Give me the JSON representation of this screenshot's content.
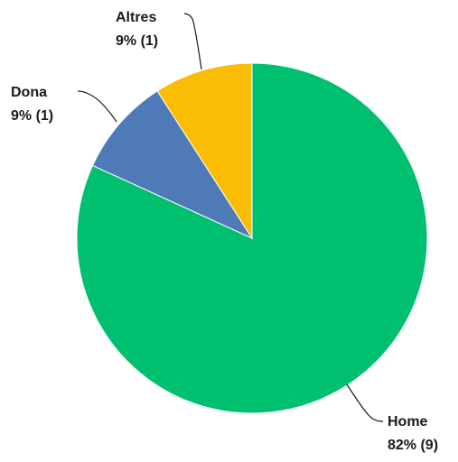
{
  "chart_data": {
    "type": "pie",
    "title": "",
    "slices": [
      {
        "name": "Home",
        "percent_label": "82% (9)",
        "value": 9,
        "color": "#00c070"
      },
      {
        "name": "Dona",
        "percent_label": "9% (1)",
        "value": 1,
        "color": "#4f7ab8"
      },
      {
        "name": "Altres",
        "percent_label": "9% (1)",
        "value": 1,
        "color": "#fbbc05"
      }
    ],
    "start": "12 o'clock",
    "direction": "clockwise",
    "legend": "none"
  }
}
